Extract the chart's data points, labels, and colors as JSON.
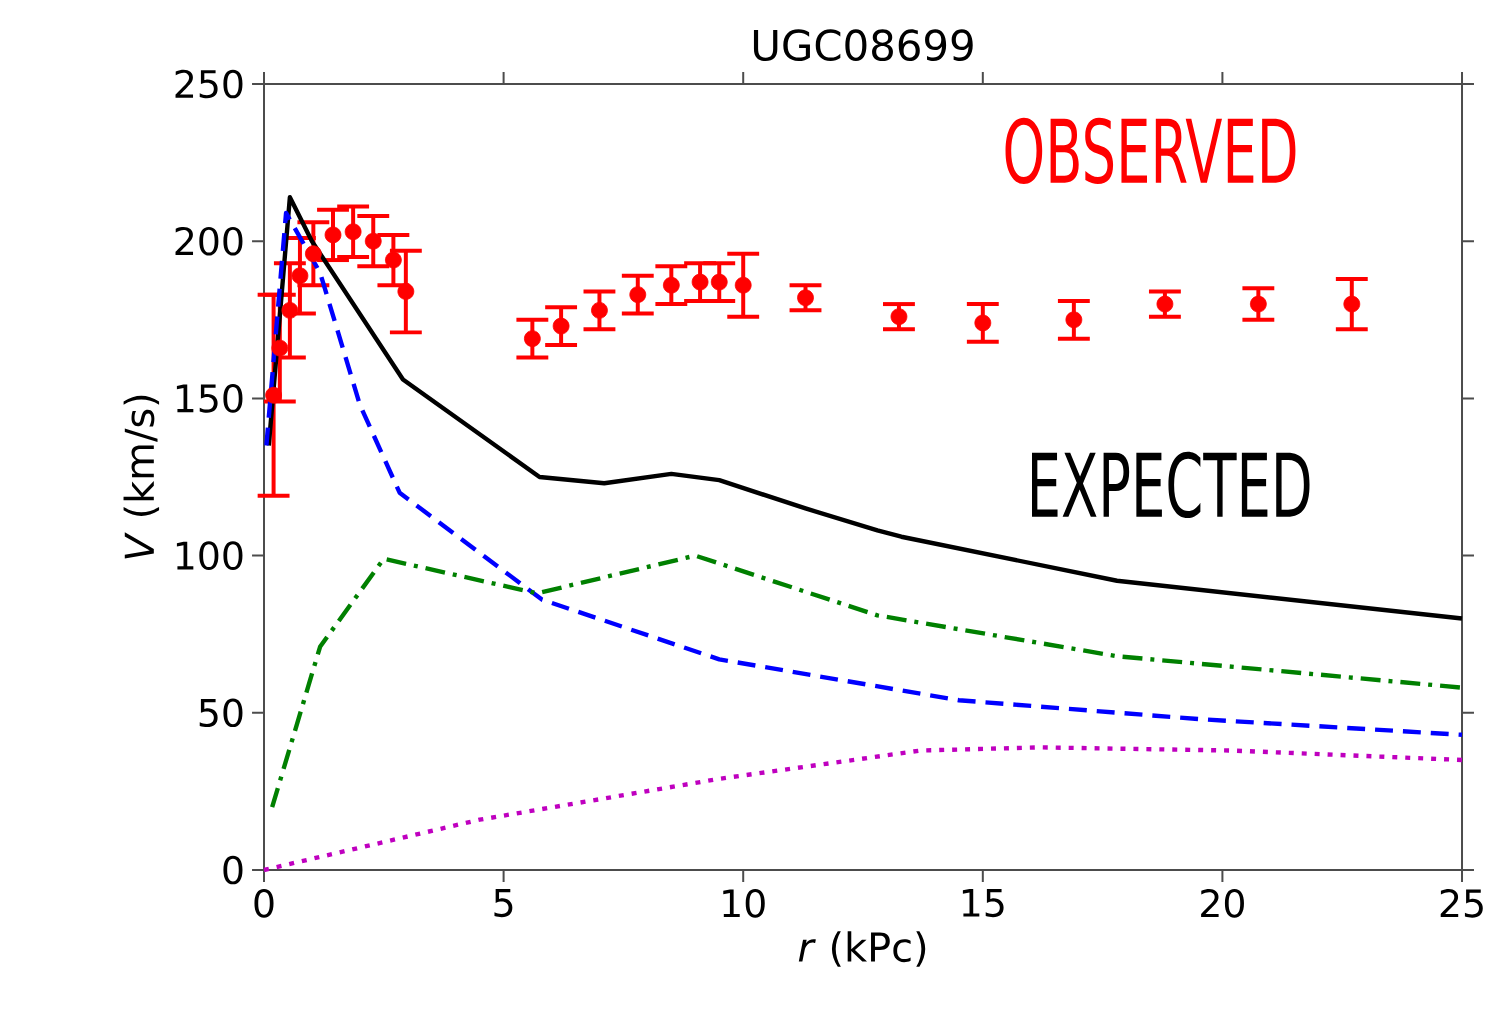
{
  "chart_data": {
    "type": "line",
    "title": "UGC08699",
    "xlabel": "*r* (kPc)",
    "ylabel": "*V* (km/s)",
    "xlim": [
      0,
      25
    ],
    "ylim": [
      0,
      250
    ],
    "xticks": [
      0,
      5,
      10,
      15,
      20,
      25
    ],
    "yticks": [
      0,
      50,
      100,
      150,
      200,
      250
    ],
    "series": [
      {
        "name": "OBSERVED",
        "type": "scatter",
        "color": "#ff0000",
        "x": [
          0.2,
          0.33,
          0.54,
          0.75,
          1.03,
          1.44,
          1.86,
          2.28,
          2.7,
          2.96,
          5.6,
          6.2,
          7.0,
          7.8,
          8.5,
          9.1,
          9.5,
          10.0,
          11.3,
          13.25,
          15.0,
          16.9,
          18.8,
          20.75,
          22.7
        ],
        "values": [
          151,
          166,
          178,
          189,
          196,
          202,
          203,
          200,
          194,
          184,
          169,
          173,
          178,
          183,
          186,
          187,
          187,
          186,
          182,
          176,
          174,
          175,
          180,
          180,
          180
        ],
        "errors": [
          32,
          17,
          15,
          12,
          10,
          8,
          8,
          8,
          8,
          13,
          6,
          6,
          6,
          6,
          6,
          6,
          6,
          10,
          4,
          4,
          6,
          6,
          4,
          5,
          8
        ]
      },
      {
        "name": "EXPECTED",
        "line_style": "solid",
        "color": "#000000",
        "x": [
          0.1,
          0.54,
          1.0,
          2.9,
          5.75,
          7.1,
          8.5,
          9.5,
          11.3,
          12.8,
          13.3,
          17.8,
          25
        ],
        "values": [
          135,
          214,
          200,
          156,
          125,
          123,
          126,
          124,
          115,
          108,
          106,
          92,
          80
        ]
      },
      {
        "line_style": "dashed",
        "color": "#0000ff",
        "x": [
          0.05,
          0.46,
          1.17,
          2.0,
          2.83,
          5.8,
          9.5,
          14.5,
          19.5,
          25
        ],
        "values": [
          135,
          209,
          190,
          148,
          120,
          86,
          67,
          54,
          48,
          43
        ]
      },
      {
        "line_style": "dashdot",
        "color": "#008000",
        "x": [
          0.17,
          1.17,
          2.5,
          5.7,
          9.0,
          12.8,
          17.8,
          25
        ],
        "values": [
          20,
          71,
          99,
          88,
          100,
          81,
          68,
          58
        ]
      },
      {
        "line_style": "dotted",
        "color": "#bf00bf",
        "x": [
          0,
          4.5,
          9.5,
          13.7,
          16.2,
          20.2,
          25
        ],
        "values": [
          0,
          16,
          29,
          38,
          39,
          38,
          35
        ]
      }
    ]
  }
}
